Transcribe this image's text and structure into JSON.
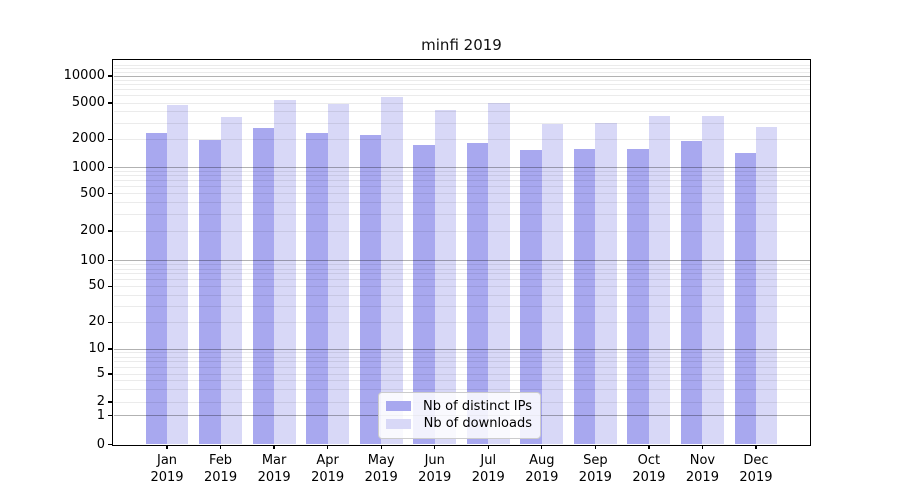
{
  "chart_data": {
    "type": "bar",
    "title": "minfi 2019",
    "xlabel": "",
    "ylabel": "",
    "yscale": "symlog",
    "grid": true,
    "legend_position": "lower center",
    "ylim": [
      0,
      13800
    ],
    "y_ticks": [
      0,
      1,
      2,
      5,
      10,
      20,
      50,
      100,
      200,
      500,
      1000,
      2000,
      5000,
      10000
    ],
    "x_ticks": [
      {
        "line1": "Jan",
        "line2": "2019"
      },
      {
        "line1": "Feb",
        "line2": "2019"
      },
      {
        "line1": "Mar",
        "line2": "2019"
      },
      {
        "line1": "Apr",
        "line2": "2019"
      },
      {
        "line1": "May",
        "line2": "2019"
      },
      {
        "line1": "Jun",
        "line2": "2019"
      },
      {
        "line1": "Jul",
        "line2": "2019"
      },
      {
        "line1": "Aug",
        "line2": "2019"
      },
      {
        "line1": "Sep",
        "line2": "2019"
      },
      {
        "line1": "Oct",
        "line2": "2019"
      },
      {
        "line1": "Nov",
        "line2": "2019"
      },
      {
        "line1": "Dec",
        "line2": "2019"
      }
    ],
    "categories": [
      "Jan 2019",
      "Feb 2019",
      "Mar 2019",
      "Apr 2019",
      "May 2019",
      "Jun 2019",
      "Jul 2019",
      "Aug 2019",
      "Sep 2019",
      "Oct 2019",
      "Nov 2019",
      "Dec 2019"
    ],
    "series": [
      {
        "name": "Nb of distinct IPs",
        "slug": "distinct-ips",
        "color": "#a8a8ef",
        "values": [
          2370,
          1950,
          2650,
          2330,
          2210,
          1720,
          1820,
          1540,
          1580,
          1570,
          1920,
          1440
        ]
      },
      {
        "name": "Nb of downloads",
        "slug": "downloads",
        "color": "#d8d8f7",
        "values": [
          4750,
          3550,
          5400,
          4840,
          5800,
          4230,
          5030,
          2950,
          3000,
          3560,
          3560,
          2700
        ]
      }
    ]
  },
  "legend": {
    "items": [
      {
        "label": "Nb of distinct IPs",
        "color": "#a8a8ef"
      },
      {
        "label": "Nb of downloads",
        "color": "#d8d8f7"
      }
    ]
  }
}
